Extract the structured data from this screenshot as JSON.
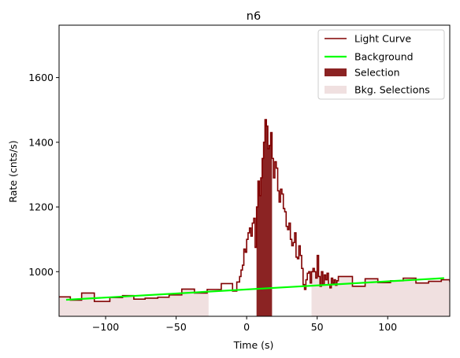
{
  "chart_data": {
    "type": "line",
    "title": "n6",
    "xlabel": "Time (s)",
    "ylabel": "Rate (cnts/s)",
    "xlim": [
      -133,
      144
    ],
    "ylim": [
      862,
      1762
    ],
    "xticks": [
      -100,
      -50,
      0,
      50,
      100
    ],
    "yticks": [
      1000,
      1200,
      1400,
      1600
    ],
    "legend": {
      "placement": "top-right",
      "entries": [
        "Light Curve",
        "Background",
        "Selection",
        "Bkg. Selections"
      ]
    },
    "colors": {
      "light_curve": "#800000",
      "background": "#00ff00",
      "selection": "#8b2323",
      "bkg_selection": "#f0e0e0"
    },
    "light_curve": {
      "name": "Light Curve",
      "x": [
        -133,
        -125,
        -117,
        -108,
        -97,
        -88,
        -80,
        -72,
        -63,
        -55,
        -46,
        -37,
        -28,
        -18,
        -10,
        -7,
        -5,
        -4,
        -3,
        -2,
        -1,
        0,
        1,
        2,
        3,
        4,
        5,
        6,
        7,
        8,
        9,
        10,
        11,
        12,
        13,
        14,
        15,
        16,
        17,
        18,
        19,
        20,
        21,
        22,
        23,
        24,
        25,
        26,
        27,
        28,
        29,
        30,
        31,
        32,
        33,
        34,
        35,
        36,
        37,
        38,
        39,
        40,
        41,
        42,
        43,
        44,
        45,
        46,
        47,
        48,
        49,
        50,
        51,
        52,
        53,
        54,
        55,
        56,
        57,
        58,
        59,
        60,
        61,
        62,
        63,
        64,
        65,
        75,
        84,
        93,
        102,
        111,
        120,
        129,
        138,
        144
      ],
      "y": [
        922,
        912,
        934,
        908,
        920,
        926,
        915,
        918,
        921,
        928,
        946,
        934,
        945,
        963,
        940,
        968,
        985,
        1005,
        1020,
        1070,
        1060,
        1100,
        1120,
        1135,
        1110,
        1150,
        1165,
        1075,
        1200,
        1280,
        1235,
        1290,
        1350,
        1400,
        1470,
        1450,
        1380,
        1390,
        1430,
        1350,
        1290,
        1340,
        1320,
        1250,
        1215,
        1255,
        1240,
        1195,
        1185,
        1140,
        1130,
        1150,
        1100,
        1080,
        1090,
        1120,
        1045,
        1040,
        1080,
        1050,
        1010,
        960,
        945,
        975,
        995,
        1000,
        965,
        1000,
        1010,
        1000,
        980,
        1050,
        985,
        955,
        1000,
        960,
        990,
        975,
        995,
        960,
        950,
        980,
        965,
        975,
        958,
        972,
        985,
        955,
        978,
        966,
        972,
        980,
        965,
        970,
        975,
        968
      ]
    },
    "background": {
      "name": "Background",
      "x": [
        -128,
        140
      ],
      "y": [
        913,
        980
      ]
    },
    "selection": {
      "name": "Selection",
      "range": [
        7,
        18
      ]
    },
    "bkg_selections": {
      "name": "Bkg. Selections",
      "ranges": [
        [
          -133,
          -27
        ],
        [
          46,
          144
        ]
      ]
    }
  }
}
